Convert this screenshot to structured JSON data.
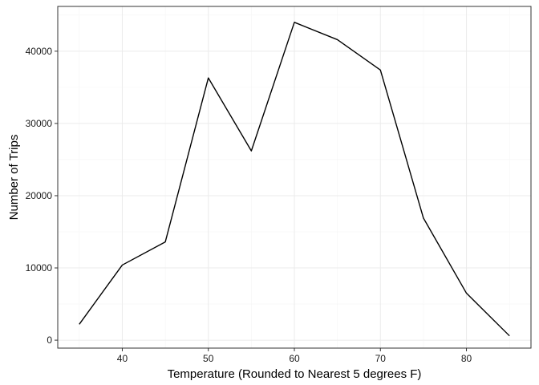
{
  "chart_data": {
    "type": "line",
    "title": "",
    "xlabel": "Temperature (Rounded to Nearest 5 degrees F)",
    "ylabel": "Number of Trips",
    "x": [
      35,
      40,
      45,
      50,
      55,
      60,
      65,
      70,
      75,
      80,
      85
    ],
    "series": [
      {
        "name": "Number of Trips",
        "values": [
          2200,
          10400,
          13600,
          36300,
          26200,
          44000,
          41600,
          37400,
          16900,
          6500,
          600
        ]
      }
    ],
    "xlim": [
      32.5,
      87.5
    ],
    "ylim": [
      -1100,
      46200
    ],
    "xticks": [
      40,
      50,
      60,
      70,
      80
    ],
    "yticks": [
      0,
      10000,
      20000,
      30000,
      40000
    ],
    "grid": true,
    "legend": "none",
    "colors": {
      "line": "#000000",
      "grid_major": "#ebebeb",
      "grid_minor": "#f5f5f5",
      "panel_border": "#333333",
      "tick_text": "#1a1a1a"
    }
  }
}
